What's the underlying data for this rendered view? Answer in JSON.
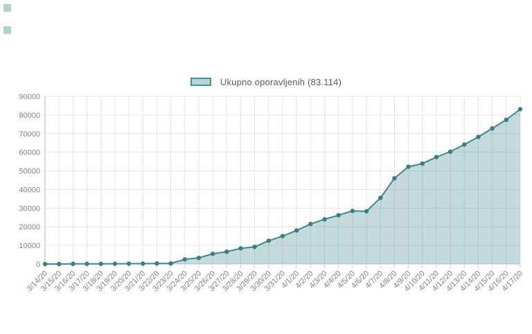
{
  "page": {
    "background": "#ffffff",
    "decor_square_color": "rgba(77,158,137,0.45)"
  },
  "legend": {
    "label": "Ukupno oporavljenih (83.114)",
    "swatch_fill": "#b5d6d8",
    "swatch_border": "#4a8f94"
  },
  "chart_data": {
    "type": "area",
    "title": "",
    "xlabel": "",
    "ylabel": "",
    "x": [
      "3/14/20",
      "3/15/20",
      "3/16/20",
      "3/17/20",
      "3/18/20",
      "3/19/20",
      "3/20/20",
      "3/21/20",
      "3/22/20",
      "3/23/20",
      "3/24/20",
      "3/25/20",
      "3/26/20",
      "3/27/20",
      "3/28/20",
      "3/29/20",
      "3/30/20",
      "3/31/20",
      "4/1/20",
      "4/2/20",
      "4/3/20",
      "4/4/20",
      "4/5/20",
      "4/6/20",
      "4/7/20",
      "4/8/20",
      "4/9/20",
      "4/10/20",
      "4/11/20",
      "4/12/20",
      "4/13/20",
      "4/14/20",
      "4/15/20",
      "4/16/20",
      "4/17/20"
    ],
    "series": [
      {
        "name": "Ukupno oporavljenih",
        "final_value_label": "83.114",
        "values": [
          0,
          0,
          100,
          100,
          100,
          150,
          200,
          200,
          300,
          300,
          2500,
          3300,
          5500,
          6600,
          8400,
          9200,
          12500,
          15000,
          18000,
          21500,
          24000,
          26200,
          28500,
          28300,
          35500,
          46000,
          52200,
          53900,
          57400,
          60300,
          64100,
          68200,
          72800,
          77400,
          83114
        ]
      }
    ],
    "ylim": [
      0,
      90000
    ],
    "y_ticks": [
      0,
      10000,
      20000,
      30000,
      40000,
      50000,
      60000,
      70000,
      80000,
      90000
    ],
    "grid": true,
    "legend_position": "top-center",
    "colors": {
      "line": "#3f868c",
      "fill": "rgba(63,134,140,0.30)",
      "marker": "#3a7e84",
      "grid": "#e4e4e4",
      "axis": "#b6b6b6",
      "baseline": "#cfcfcf",
      "tick_label": "#818181"
    }
  }
}
